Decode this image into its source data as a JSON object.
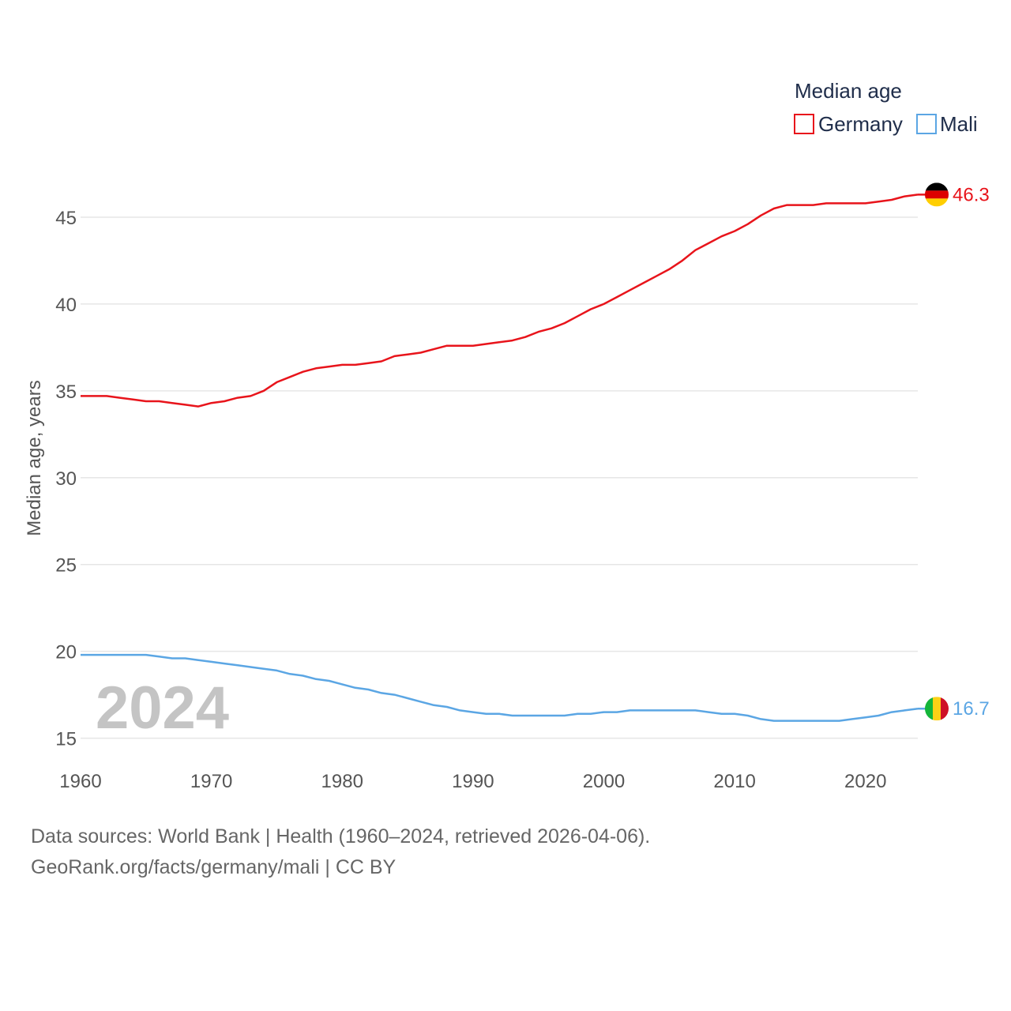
{
  "chart_data": {
    "type": "line",
    "title": "Median age",
    "ylabel": "Median age, years",
    "xlabel": "",
    "xlim": [
      1960,
      2024
    ],
    "ylim": [
      14.3,
      47.5
    ],
    "x_ticks": [
      1960,
      1970,
      1980,
      1990,
      2000,
      2010,
      2020
    ],
    "y_ticks": [
      15,
      20,
      25,
      30,
      35,
      40,
      45
    ],
    "grid": true,
    "legend_position": "top-right",
    "current_year_label": "2024",
    "x": [
      1960,
      1961,
      1962,
      1963,
      1964,
      1965,
      1966,
      1967,
      1968,
      1969,
      1970,
      1971,
      1972,
      1973,
      1974,
      1975,
      1976,
      1977,
      1978,
      1979,
      1980,
      1981,
      1982,
      1983,
      1984,
      1985,
      1986,
      1987,
      1988,
      1989,
      1990,
      1991,
      1992,
      1993,
      1994,
      1995,
      1996,
      1997,
      1998,
      1999,
      2000,
      2001,
      2002,
      2003,
      2004,
      2005,
      2006,
      2007,
      2008,
      2009,
      2010,
      2011,
      2012,
      2013,
      2014,
      2015,
      2016,
      2017,
      2018,
      2019,
      2020,
      2021,
      2022,
      2023,
      2024
    ],
    "series": [
      {
        "name": "Germany",
        "color": "#e8141b",
        "end_label": "46.3",
        "flag": "germany-flag",
        "values": [
          34.7,
          34.7,
          34.7,
          34.6,
          34.5,
          34.4,
          34.4,
          34.3,
          34.2,
          34.1,
          34.3,
          34.4,
          34.6,
          34.7,
          35.0,
          35.5,
          35.8,
          36.1,
          36.3,
          36.4,
          36.5,
          36.5,
          36.6,
          36.7,
          37.0,
          37.1,
          37.2,
          37.4,
          37.6,
          37.6,
          37.6,
          37.7,
          37.8,
          37.9,
          38.1,
          38.4,
          38.6,
          38.9,
          39.3,
          39.7,
          40.0,
          40.4,
          40.8,
          41.2,
          41.6,
          42.0,
          42.5,
          43.1,
          43.5,
          43.9,
          44.2,
          44.6,
          45.1,
          45.5,
          45.7,
          45.7,
          45.7,
          45.8,
          45.8,
          45.8,
          45.8,
          45.9,
          46.0,
          46.2,
          46.3
        ]
      },
      {
        "name": "Mali",
        "color": "#5ba6e4",
        "end_label": "16.7",
        "flag": "mali-flag",
        "values": [
          19.8,
          19.8,
          19.8,
          19.8,
          19.8,
          19.8,
          19.7,
          19.6,
          19.6,
          19.5,
          19.4,
          19.3,
          19.2,
          19.1,
          19.0,
          18.9,
          18.7,
          18.6,
          18.4,
          18.3,
          18.1,
          17.9,
          17.8,
          17.6,
          17.5,
          17.3,
          17.1,
          16.9,
          16.8,
          16.6,
          16.5,
          16.4,
          16.4,
          16.3,
          16.3,
          16.3,
          16.3,
          16.3,
          16.4,
          16.4,
          16.5,
          16.5,
          16.6,
          16.6,
          16.6,
          16.6,
          16.6,
          16.6,
          16.5,
          16.4,
          16.4,
          16.3,
          16.1,
          16.0,
          16.0,
          16.0,
          16.0,
          16.0,
          16.0,
          16.1,
          16.2,
          16.3,
          16.5,
          16.6,
          16.7
        ]
      }
    ]
  },
  "source": {
    "line1": "Data sources: World Bank | Health (1960–2024, retrieved 2026-04-06).",
    "line2": "GeoRank.org/facts/germany/mali | CC BY"
  }
}
